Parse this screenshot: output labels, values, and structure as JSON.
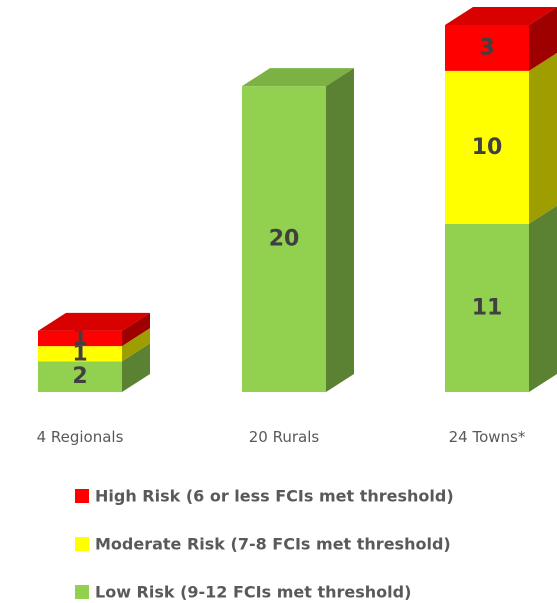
{
  "chart_data": {
    "type": "bar3d-stacked",
    "categories": [
      "4 Regionals",
      "20 Rurals",
      "24 Towns*"
    ],
    "series": [
      {
        "name": "Low Risk (9-12 FCIs met threshold)",
        "color": "#92d050",
        "values": [
          2,
          20,
          11
        ]
      },
      {
        "name": "Moderate Risk (7-8 FCIs met threshold)",
        "color": "#ffff00",
        "values": [
          1,
          null,
          10
        ]
      },
      {
        "name": "High Risk (6 or less FCIs met threshold)",
        "color": "#ff0000",
        "values": [
          1,
          null,
          3
        ]
      }
    ],
    "ylim": [
      0,
      24
    ],
    "legend": "bottom"
  }
}
